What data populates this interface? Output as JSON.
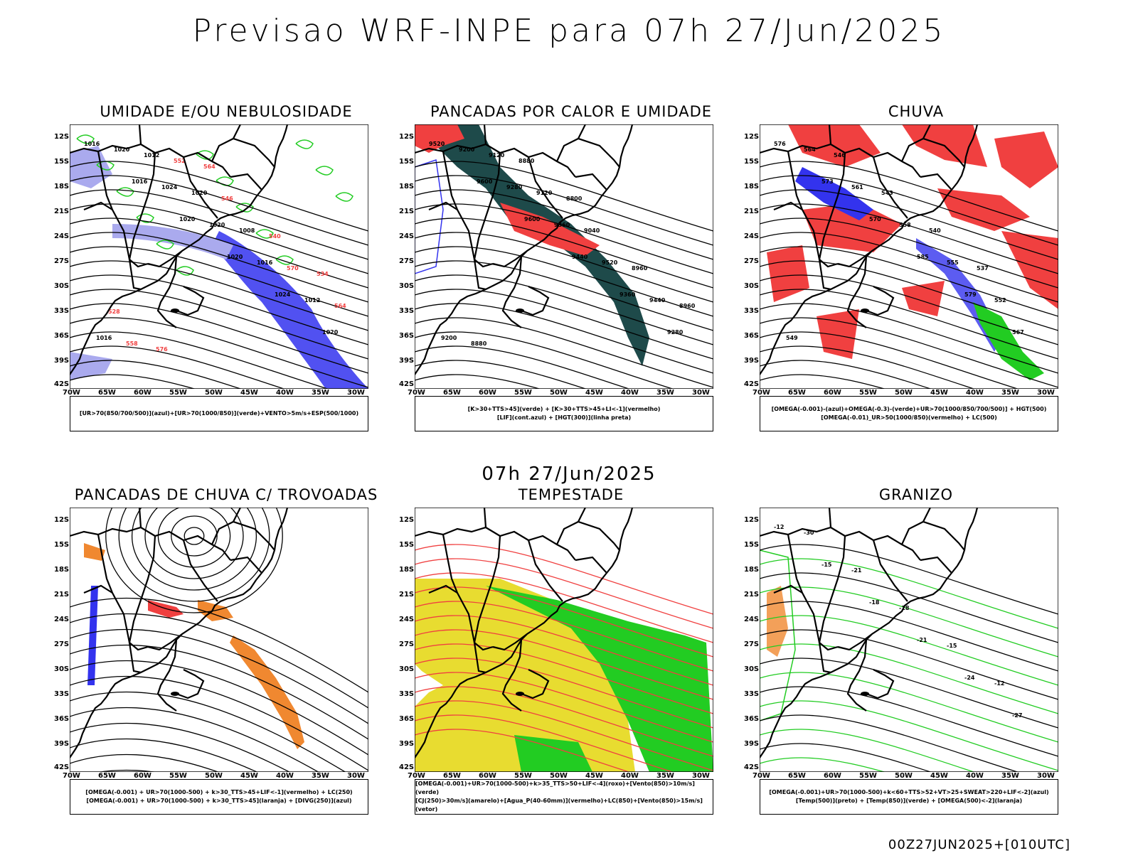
{
  "title": "Previsao WRF-INPE  para 07h 27/Jun/2025",
  "subtitle": "07h 27/Jun/2025",
  "footer": "00Z27JUN2025+[010UTC]",
  "lat_ticks": [
    "12S",
    "15S",
    "18S",
    "21S",
    "24S",
    "27S",
    "30S",
    "33S",
    "36S",
    "39S",
    "42S"
  ],
  "lon_ticks": [
    "70W",
    "65W",
    "60W",
    "55W",
    "50W",
    "45W",
    "40W",
    "35W",
    "30W"
  ],
  "colors": {
    "red": "#f04040",
    "green": "#22cc22",
    "blue": "#3333ee",
    "lightblue": "#aaaaee",
    "darkteal": "#1e4a4a",
    "orange": "#f08830",
    "yellow": "#e8dc30"
  },
  "panels": [
    {
      "title": "UMIDADE E/OU NEBULOSIDADE",
      "legend": [
        "[UR>70(850/700/500)](azul)+[UR>70(1000/850)](verde)+VENTO>5m/s+ESP(500/1000)"
      ],
      "labels": [
        "1016",
        "1016",
        "1020",
        "1020",
        "1024",
        "1020",
        "1020",
        "1024",
        "1020",
        "1016",
        "1012",
        "1016",
        "1012",
        "1020",
        "1008",
        "570",
        "564",
        "558",
        "552",
        "546",
        "540",
        "534",
        "528",
        "576",
        "564"
      ]
    },
    {
      "title": "PANCADAS POR CALOR E UMIDADE",
      "legend": [
        "[K>30+TTS>45](verde) + [K>30+TTS>45+LI<-1](vermelho)",
        "[LIF](cont.azul) + [HGT(300)](linha preta)"
      ],
      "labels": [
        "9520",
        "9600",
        "9600",
        "9440",
        "9360",
        "9280",
        "9200",
        "9280",
        "9360",
        "9520",
        "9440",
        "9200",
        "9120",
        "9120",
        "9040",
        "8960",
        "8960",
        "8880",
        "8880",
        "8800"
      ]
    },
    {
      "title": "CHUVA",
      "legend": [
        "[OMEGA(-0.001)-(azul)+OMEGA(-0.3)-(verde)+UR>70(1000/850/700/500)] + HGT(500)",
        "[OMEGA(-0.01)_UR>50(1000/850)(vermelho) + LC(500)"
      ],
      "labels": [
        "576",
        "573",
        "570",
        "585",
        "579",
        "567",
        "564",
        "561",
        "558",
        "555",
        "552",
        "549",
        "546",
        "543",
        "540",
        "537"
      ]
    },
    {
      "title": "PANCADAS DE CHUVA C/ TROVOADAS",
      "legend": [
        "[OMEGA(-0.001) + UR>70(1000-500) + k>30_TTS>45+LIF<-1](vermelho) + LC(250)",
        "[OMEGA(-0.001) + UR>70(1000-500) + k>30_TTS>45](laranja) + [DIVG(250)](azul)"
      ],
      "labels": []
    },
    {
      "title": "TEMPESTADE",
      "legend": [
        "[OMEGA(-0.001)+UR>70(1000-500)+k>35_TTS>50+LIF<-4](roxo)+[Vento(850)>10m/s](verde)",
        "[CJ(250)>30m/s](amarelo)+[Agua_P(40-60mm)](vermelho)+LC(850)+[Vento(850)>15m/s](vetor)"
      ],
      "labels": []
    },
    {
      "title": "GRANIZO",
      "legend": [
        "[OMEGA(-0.001)+UR>70(1000-500)+k<60+TTS>52+VT>25+SWEAT>220+LIF<-2](azul)",
        "[Temp(500)](preto) + [Temp(850)](verde) + [OMEGA(500)<-2](laranja)"
      ],
      "labels": [
        "-12",
        "-15",
        "-18",
        "-21",
        "-24",
        "-27",
        "-30",
        "-21",
        "-18",
        "-15",
        "-12"
      ]
    }
  ]
}
